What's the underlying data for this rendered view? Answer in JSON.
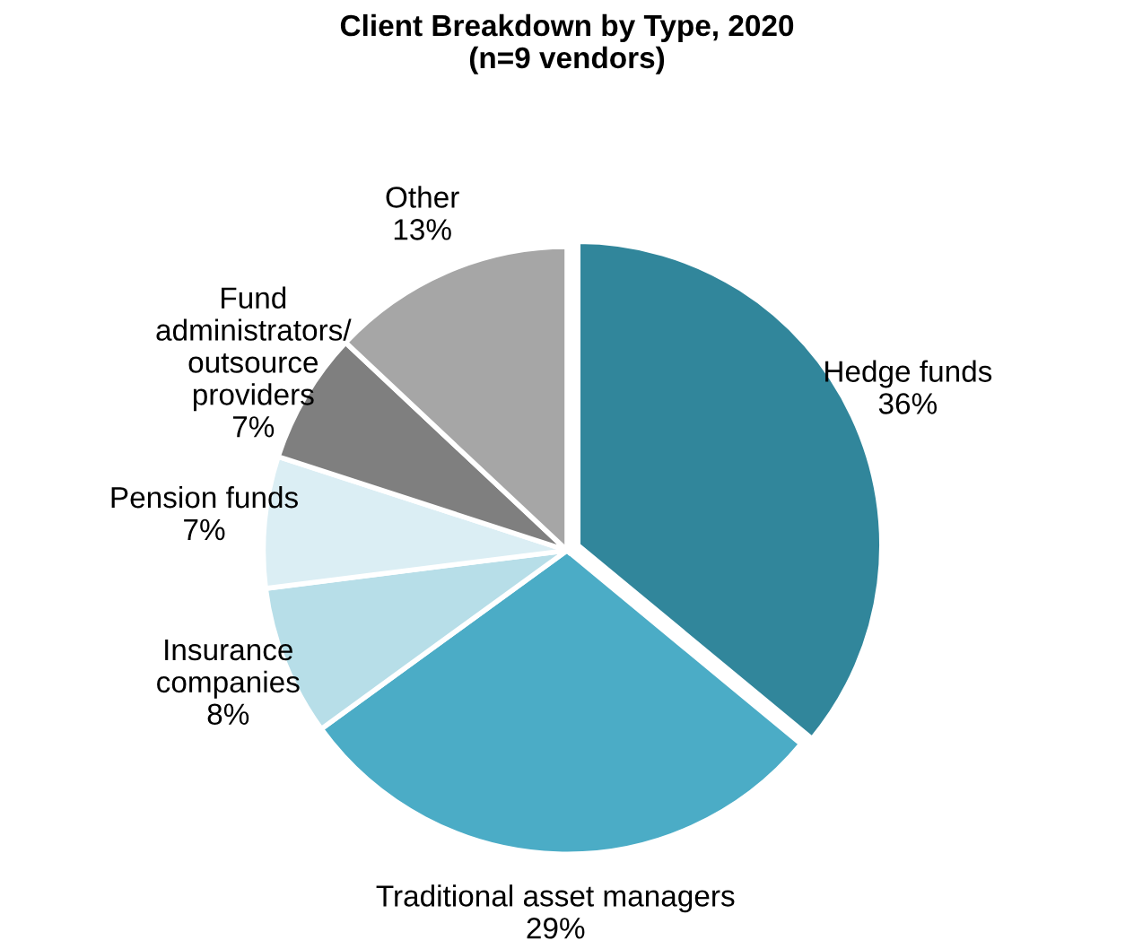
{
  "chart_data": {
    "type": "pie",
    "title": "Client Breakdown by Type, 2020\n(n=9 vendors)",
    "categories": [
      "Hedge funds",
      "Traditional asset managers",
      "Insurance\ncompanies",
      "Pension funds",
      "Fund\nadministrators/\noutsource\nproviders",
      "Other"
    ],
    "values": [
      36,
      29,
      8,
      7,
      7,
      13
    ],
    "colors": [
      "#31869b",
      "#4bacc6",
      "#b7dee8",
      "#dbeef4",
      "#7f7f7f",
      "#a6a6a6"
    ],
    "value_labels": [
      "36%",
      "29%",
      "8%",
      "7%",
      "7%",
      "13%"
    ]
  }
}
